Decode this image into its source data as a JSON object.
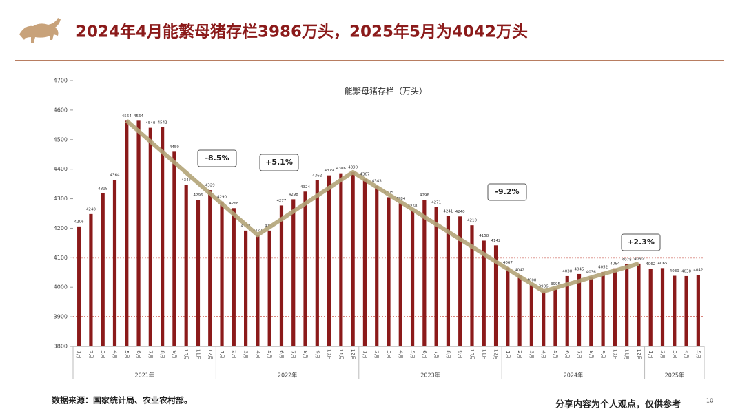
{
  "header": {
    "title": "2024年4月能繁母猪存栏3986万头，2025年5月为4042万头"
  },
  "chart_data": {
    "type": "bar",
    "title": "能繁母猪存栏（万头）",
    "categories": [
      "1月",
      "2月",
      "3月",
      "4月",
      "5月",
      "6月",
      "7月",
      "8月",
      "9月",
      "10月",
      "11月",
      "12月",
      "1月",
      "2月",
      "3月",
      "4月",
      "5月",
      "6月",
      "7月",
      "8月",
      "9月",
      "10月",
      "11月",
      "12月",
      "1月",
      "2月",
      "3月",
      "4月",
      "5月",
      "6月",
      "7月",
      "8月",
      "9月",
      "10月",
      "11月",
      "12月",
      "1月",
      "2月",
      "3月",
      "4月",
      "5月",
      "6月",
      "7月",
      "8月",
      "9月",
      "10月",
      "11月",
      "12月",
      "1月",
      "2月",
      "3月",
      "4月",
      "5月"
    ],
    "year_groups": [
      "2021年",
      "2022年",
      "2023年",
      "2024年",
      "2025年"
    ],
    "values": [
      4206,
      4248,
      4318,
      4364,
      4564,
      4564,
      4540,
      4542,
      4459,
      4347,
      4296,
      4329,
      4290,
      4268,
      4192,
      4177,
      4192,
      4277,
      4298,
      4324,
      4362,
      4379,
      4386,
      4390,
      4367,
      4343,
      4305,
      4284,
      4258,
      4296,
      4271,
      4241,
      4240,
      4210,
      4158,
      4142,
      4067,
      4042,
      4008,
      3986,
      3995,
      4038,
      4045,
      4036,
      4052,
      4064,
      4078,
      4080,
      4062,
      4065,
      4039,
      4038,
      4042
    ],
    "color": "#8b1a1a",
    "ylim": [
      3800,
      4700
    ],
    "yticks": [
      3800,
      3900,
      4000,
      4100,
      4200,
      4300,
      4400,
      4500,
      4600,
      4700
    ],
    "reference_lines": [
      4100,
      3900
    ],
    "annotations": [
      {
        "label": "-8.5%",
        "value": -8.5
      },
      {
        "label": "+5.1%",
        "value": 5.1
      },
      {
        "label": "-9.2%",
        "value": -9.2
      },
      {
        "label": "+2.3%",
        "value": 2.3
      }
    ]
  },
  "footer": {
    "source": "数据来源：国家统计局、农业农村部。",
    "note": "分享内容为个人观点，仅供参考",
    "page": "10"
  }
}
